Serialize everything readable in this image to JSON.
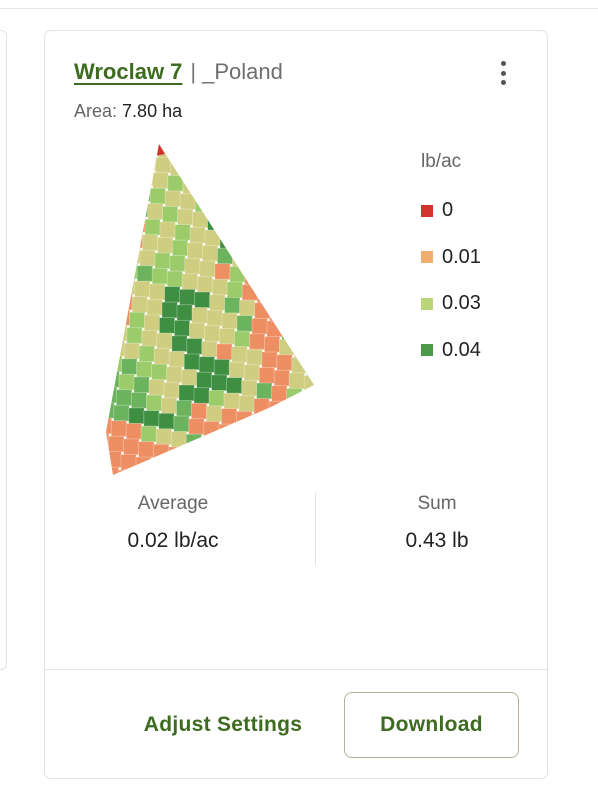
{
  "card": {
    "field_name": "Wroclaw 7",
    "separator": "|",
    "farm_name": "_Poland",
    "area_label": "Area:",
    "area_value": "7.80 ha",
    "menu_icon": "more-vertical-icon"
  },
  "legend": {
    "unit": "lb/ac",
    "items": [
      {
        "label": "0",
        "color": "#d2342b"
      },
      {
        "label": "0.01",
        "color": "#f0ad6e"
      },
      {
        "label": "0.03",
        "color": "#b9d67a"
      },
      {
        "label": "0.04",
        "color": "#4a9a48"
      }
    ]
  },
  "map_colors": {
    "red": "#d2342b",
    "orange": "#ed8f63",
    "light_orange": "#f0ad6e",
    "olive": "#cfcd7f",
    "light_green": "#9ccc6a",
    "green": "#6cb35e",
    "dark_green": "#3f8f43"
  },
  "stats": {
    "average_label": "Average",
    "average_value": "0.02 lb/ac",
    "sum_label": "Sum",
    "sum_value": "0.43 lb"
  },
  "actions": {
    "adjust_label": "Adjust Settings",
    "download_label": "Download"
  }
}
